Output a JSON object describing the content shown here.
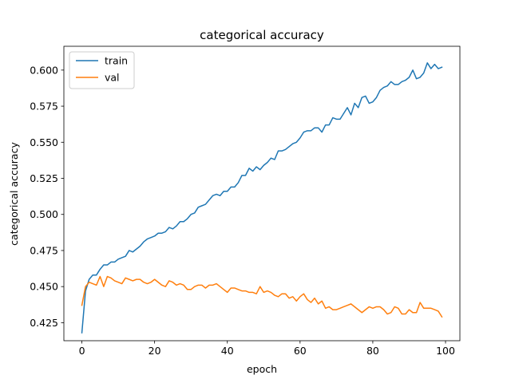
{
  "chart_data": {
    "type": "line",
    "title": "categorical accuracy",
    "xlabel": "epoch",
    "ylabel": "categorical accuracy",
    "xlim": [
      -4.95,
      103.95
    ],
    "ylim": [
      0.4125,
      0.6165
    ],
    "xticks": [
      0,
      20,
      40,
      60,
      80,
      100
    ],
    "yticks": [
      0.425,
      0.45,
      0.475,
      0.5,
      0.525,
      0.55,
      0.575,
      0.6
    ],
    "ytick_labels": [
      "0.425",
      "0.450",
      "0.475",
      "0.500",
      "0.525",
      "0.550",
      "0.575",
      "0.600"
    ],
    "xtick_labels": [
      "0",
      "20",
      "40",
      "60",
      "80",
      "100"
    ],
    "grid": false,
    "legend": {
      "placement": "top-left"
    },
    "series": [
      {
        "name": "train",
        "color": "#1f77b4",
        "x": [
          0,
          1,
          2,
          3,
          4,
          5,
          6,
          7,
          8,
          9,
          10,
          11,
          12,
          13,
          14,
          15,
          16,
          17,
          18,
          19,
          20,
          21,
          22,
          23,
          24,
          25,
          26,
          27,
          28,
          29,
          30,
          31,
          32,
          33,
          34,
          35,
          36,
          37,
          38,
          39,
          40,
          41,
          42,
          43,
          44,
          45,
          46,
          47,
          48,
          49,
          50,
          51,
          52,
          53,
          54,
          55,
          56,
          57,
          58,
          59,
          60,
          61,
          62,
          63,
          64,
          65,
          66,
          67,
          68,
          69,
          70,
          71,
          72,
          73,
          74,
          75,
          76,
          77,
          78,
          79,
          80,
          81,
          82,
          83,
          84,
          85,
          86,
          87,
          88,
          89,
          90,
          91,
          92,
          93,
          94,
          95,
          96,
          97,
          98,
          99
        ],
        "values": [
          0.418,
          0.447,
          0.455,
          0.458,
          0.458,
          0.462,
          0.465,
          0.465,
          0.467,
          0.467,
          0.469,
          0.47,
          0.471,
          0.475,
          0.474,
          0.476,
          0.478,
          0.481,
          0.483,
          0.484,
          0.485,
          0.487,
          0.487,
          0.488,
          0.491,
          0.49,
          0.492,
          0.495,
          0.495,
          0.497,
          0.5,
          0.501,
          0.505,
          0.506,
          0.507,
          0.51,
          0.513,
          0.514,
          0.513,
          0.516,
          0.516,
          0.519,
          0.519,
          0.522,
          0.527,
          0.527,
          0.532,
          0.53,
          0.533,
          0.531,
          0.534,
          0.536,
          0.539,
          0.538,
          0.544,
          0.544,
          0.545,
          0.547,
          0.549,
          0.55,
          0.553,
          0.557,
          0.558,
          0.558,
          0.56,
          0.56,
          0.557,
          0.562,
          0.562,
          0.567,
          0.566,
          0.566,
          0.57,
          0.574,
          0.569,
          0.577,
          0.574,
          0.581,
          0.582,
          0.577,
          0.578,
          0.581,
          0.586,
          0.588,
          0.589,
          0.592,
          0.59,
          0.59,
          0.592,
          0.593,
          0.595,
          0.6,
          0.594,
          0.595,
          0.598,
          0.605,
          0.601,
          0.604,
          0.601,
          0.602
        ]
      },
      {
        "name": "val",
        "color": "#ff7f0e",
        "x": [
          0,
          1,
          2,
          3,
          4,
          5,
          6,
          7,
          8,
          9,
          10,
          11,
          12,
          13,
          14,
          15,
          16,
          17,
          18,
          19,
          20,
          21,
          22,
          23,
          24,
          25,
          26,
          27,
          28,
          29,
          30,
          31,
          32,
          33,
          34,
          35,
          36,
          37,
          38,
          39,
          40,
          41,
          42,
          43,
          44,
          45,
          46,
          47,
          48,
          49,
          50,
          51,
          52,
          53,
          54,
          55,
          56,
          57,
          58,
          59,
          60,
          61,
          62,
          63,
          64,
          65,
          66,
          67,
          68,
          69,
          70,
          71,
          72,
          73,
          74,
          75,
          76,
          77,
          78,
          79,
          80,
          81,
          82,
          83,
          84,
          85,
          86,
          87,
          88,
          89,
          90,
          91,
          92,
          93,
          94,
          95,
          96,
          97,
          98,
          99
        ],
        "values": [
          0.437,
          0.45,
          0.453,
          0.452,
          0.451,
          0.457,
          0.45,
          0.457,
          0.456,
          0.454,
          0.453,
          0.452,
          0.456,
          0.455,
          0.454,
          0.455,
          0.455,
          0.453,
          0.452,
          0.453,
          0.455,
          0.453,
          0.451,
          0.45,
          0.454,
          0.453,
          0.451,
          0.452,
          0.451,
          0.448,
          0.448,
          0.45,
          0.451,
          0.451,
          0.449,
          0.451,
          0.451,
          0.452,
          0.45,
          0.448,
          0.446,
          0.449,
          0.449,
          0.448,
          0.447,
          0.447,
          0.446,
          0.446,
          0.445,
          0.45,
          0.446,
          0.447,
          0.446,
          0.444,
          0.443,
          0.445,
          0.445,
          0.442,
          0.443,
          0.44,
          0.443,
          0.445,
          0.441,
          0.439,
          0.442,
          0.438,
          0.44,
          0.435,
          0.436,
          0.434,
          0.434,
          0.435,
          0.436,
          0.437,
          0.438,
          0.436,
          0.434,
          0.432,
          0.434,
          0.436,
          0.435,
          0.436,
          0.436,
          0.434,
          0.431,
          0.432,
          0.436,
          0.435,
          0.431,
          0.431,
          0.434,
          0.432,
          0.432,
          0.439,
          0.435,
          0.435,
          0.435,
          0.434,
          0.433,
          0.429
        ]
      }
    ]
  }
}
